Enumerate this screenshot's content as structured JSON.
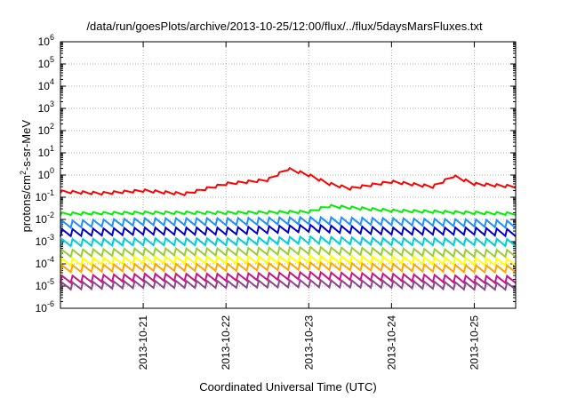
{
  "chart_data": {
    "type": "line",
    "title": "/data/run/goesPlots/archive/2013-10-25/12:00/flux/../flux/5daysMarsFluxes.txt",
    "xlabel": "Coordinated Universal Time (UTC)",
    "ylabel_parts": [
      "protons/cm",
      "2",
      "-s-sr-MeV"
    ],
    "x_range": [
      "2013-10-20T00:00",
      "2013-10-25T12:00"
    ],
    "x_ticks": [
      "2013-10-21",
      "2013-10-22",
      "2013-10-23",
      "2013-10-24",
      "2013-10-25"
    ],
    "y_scale": "log",
    "ylim": [
      1e-06,
      1000000.0
    ],
    "y_ticks": [
      {
        "base": "10",
        "exp": "-6"
      },
      {
        "base": "10",
        "exp": "-5"
      },
      {
        "base": "10",
        "exp": "-4"
      },
      {
        "base": "10",
        "exp": "-3"
      },
      {
        "base": "10",
        "exp": "-2"
      },
      {
        "base": "10",
        "exp": "-1"
      },
      {
        "base": "10",
        "exp": "0"
      },
      {
        "base": "10",
        "exp": "1"
      },
      {
        "base": "10",
        "exp": "2"
      },
      {
        "base": "10",
        "exp": "3"
      },
      {
        "base": "10",
        "exp": "4"
      },
      {
        "base": "10",
        "exp": "5"
      },
      {
        "base": "10",
        "exp": "6"
      }
    ],
    "grid": true,
    "legend": "none",
    "series": [
      {
        "color": "#ff0000",
        "x": [
          "2013-10-20T00:00",
          "2013-10-20T12:00",
          "2013-10-21T00:00",
          "2013-10-21T12:00",
          "2013-10-22T00:00",
          "2013-10-22T12:00",
          "2013-10-22T18:00",
          "2013-10-23T00:00",
          "2013-10-23T06:00",
          "2013-10-23T12:00",
          "2013-10-24T00:00",
          "2013-10-24T12:00",
          "2013-10-24T18:00",
          "2013-10-25T00:00",
          "2013-10-25T12:00"
        ],
        "y": [
          0.18,
          0.15,
          0.2,
          0.14,
          0.4,
          0.6,
          1.9,
          1.0,
          0.4,
          0.25,
          0.5,
          0.3,
          0.9,
          0.4,
          0.3
        ]
      },
      {
        "color": "#00ee00",
        "x": [
          "2013-10-20T00:00",
          "2013-10-21T00:00",
          "2013-10-22T00:00",
          "2013-10-23T00:00",
          "2013-10-23T06:00",
          "2013-10-24T00:00",
          "2013-10-25T00:00",
          "2013-10-25T12:00"
        ],
        "y": [
          0.018,
          0.02,
          0.02,
          0.022,
          0.04,
          0.025,
          0.02,
          0.018
        ]
      },
      {
        "color": "#1e90ff",
        "x": [
          "2013-10-20T00:00",
          "2013-10-21T00:00",
          "2013-10-22T00:00",
          "2013-10-23T00:00",
          "2013-10-24T00:00",
          "2013-10-25T00:00",
          "2013-10-25T12:00"
        ],
        "y": [
          0.006,
          0.008,
          0.008,
          0.009,
          0.008,
          0.007,
          0.006
        ]
      },
      {
        "color": "#0000cd",
        "x": [
          "2013-10-20T00:00",
          "2013-10-21T00:00",
          "2013-10-22T00:00",
          "2013-10-23T00:00",
          "2013-10-24T00:00",
          "2013-10-25T00:00",
          "2013-10-25T12:00"
        ],
        "y": [
          0.0025,
          0.003,
          0.003,
          0.004,
          0.003,
          0.003,
          0.0025
        ]
      },
      {
        "color": "#00ced1",
        "x": [
          "2013-10-20T00:00",
          "2013-10-21T00:00",
          "2013-10-22T00:00",
          "2013-10-23T00:00",
          "2013-10-24T00:00",
          "2013-10-25T00:00",
          "2013-10-25T12:00"
        ],
        "y": [
          0.0009,
          0.001,
          0.001,
          0.0012,
          0.001,
          0.001,
          0.0009
        ]
      },
      {
        "color": "#9acd32",
        "x": [
          "2013-10-20T00:00",
          "2013-10-21T00:00",
          "2013-10-22T00:00",
          "2013-10-23T00:00",
          "2013-10-24T00:00",
          "2013-10-25T00:00",
          "2013-10-25T12:00"
        ],
        "y": [
          0.0003,
          0.00035,
          0.00035,
          0.0004,
          0.00035,
          0.0003,
          0.0003
        ]
      },
      {
        "color": "#ffff00",
        "x": [
          "2013-10-20T00:00",
          "2013-10-21T00:00",
          "2013-10-22T00:00",
          "2013-10-23T00:00",
          "2013-10-24T00:00",
          "2013-10-25T00:00",
          "2013-10-25T12:00"
        ],
        "y": [
          0.00012,
          0.00015,
          0.00015,
          0.00016,
          0.00015,
          0.00013,
          0.00012
        ]
      },
      {
        "color": "#ffa500",
        "x": [
          "2013-10-20T00:00",
          "2013-10-21T00:00",
          "2013-10-22T00:00",
          "2013-10-23T00:00",
          "2013-10-24T00:00",
          "2013-10-25T00:00",
          "2013-10-25T12:00"
        ],
        "y": [
          6e-05,
          7e-05,
          7e-05,
          8e-05,
          7e-05,
          6e-05,
          6e-05
        ]
      },
      {
        "color": "#c71585",
        "x": [
          "2013-10-20T00:00",
          "2013-10-21T00:00",
          "2013-10-22T00:00",
          "2013-10-23T00:00",
          "2013-10-24T00:00",
          "2013-10-25T00:00",
          "2013-10-25T12:00"
        ],
        "y": [
          2e-05,
          2.5e-05,
          2.5e-05,
          3e-05,
          2.5e-05,
          2e-05,
          2e-05
        ]
      },
      {
        "color": "#8b4789",
        "x": [
          "2013-10-20T00:00",
          "2013-10-21T00:00",
          "2013-10-22T00:00",
          "2013-10-23T00:00",
          "2013-10-24T00:00",
          "2013-10-25T00:00",
          "2013-10-25T12:00"
        ],
        "y": [
          1e-05,
          1.2e-05,
          1.2e-05,
          1.3e-05,
          1.2e-05,
          1e-05,
          1e-05
        ]
      }
    ]
  }
}
